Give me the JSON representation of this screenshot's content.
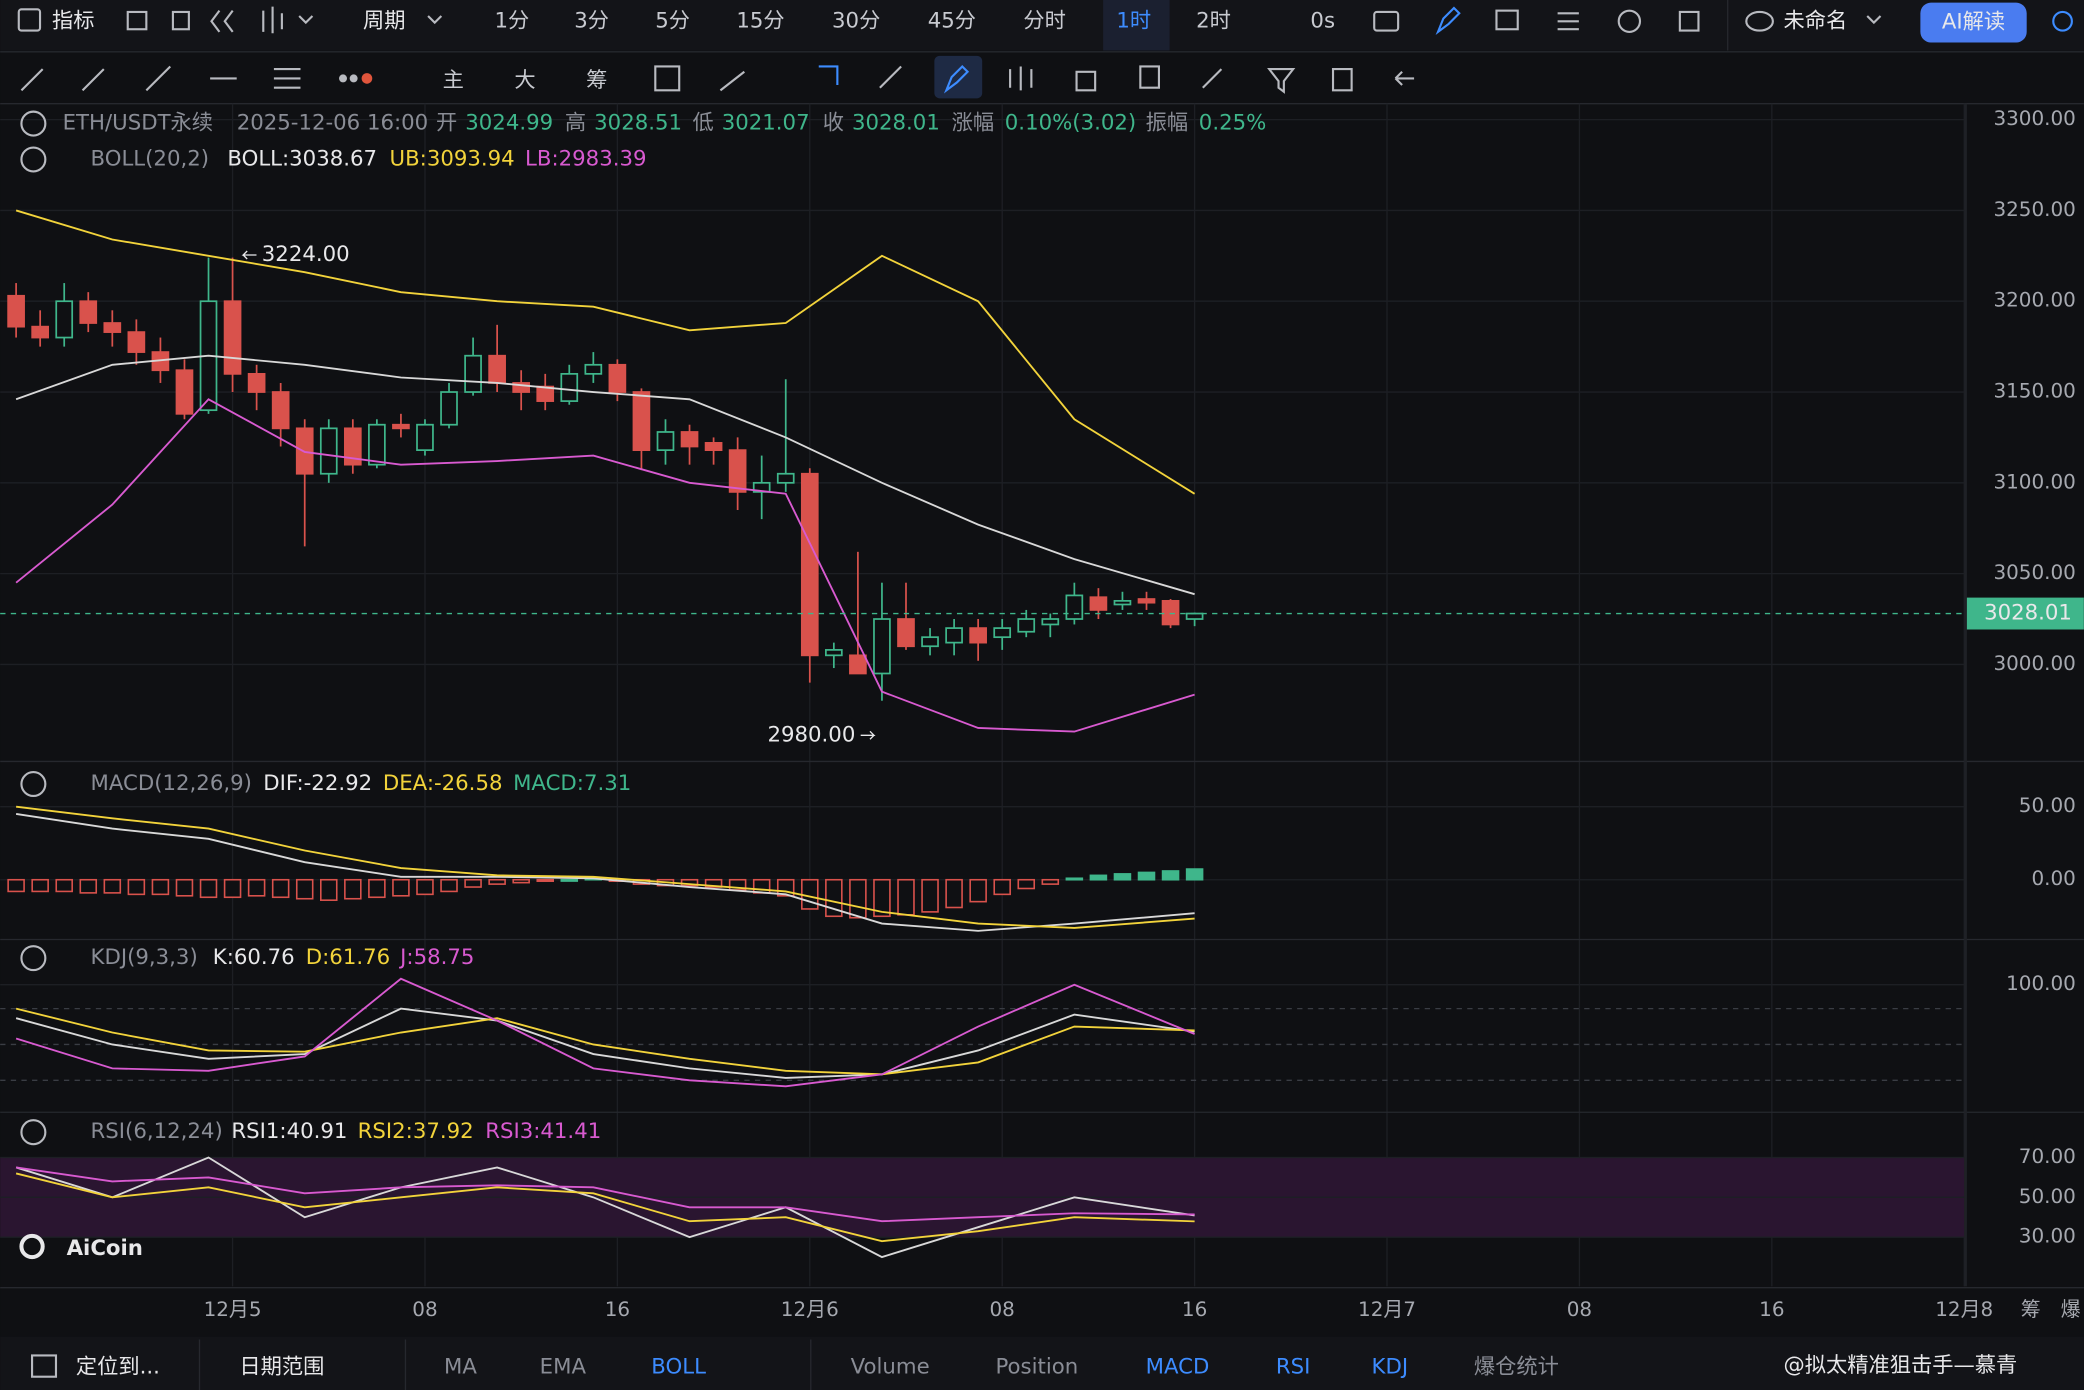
{
  "toolbar": {
    "items": [
      "指标",
      "周期",
      "1分",
      "3分",
      "5分",
      "15分",
      "30分",
      "45分",
      "分时",
      "1时",
      "2时",
      "0s"
    ],
    "layout_name": "未命名",
    "ai": "AI解读"
  },
  "drawing_tools": [
    "主",
    "大",
    "筹"
  ],
  "info": {
    "symbol": "ETH/USDT永续",
    "time": "2025-12-06 16:00",
    "open_label": "开",
    "open": "3024.99",
    "high_label": "高",
    "high": "3028.51",
    "low_label": "低",
    "low": "3021.07",
    "close_label": "收",
    "close": "3028.01",
    "change_label": "涨幅",
    "change": "0.10%(3.02)",
    "amp_label": "振幅",
    "amp": "0.25%"
  },
  "chart": {
    "ylim": [
      2947.3,
      3308.8
    ],
    "xlim": [
      -0.663,
      81
    ],
    "yticks": [
      {
        "value": 3300,
        "label": "3300.00"
      },
      {
        "value": 3250,
        "label": "3250.00"
      },
      {
        "value": 3200,
        "label": "3200.00"
      },
      {
        "value": 3150,
        "label": "3150.00"
      },
      {
        "value": 3100,
        "label": "3100.00"
      },
      {
        "value": 3050,
        "label": "3050.00"
      },
      {
        "value": 3000,
        "label": "3000.00"
      }
    ],
    "xticks": [
      {
        "value": 9,
        "label": "12月5"
      },
      {
        "value": 17,
        "label": "08"
      },
      {
        "value": 25,
        "label": "16"
      },
      {
        "value": 33,
        "label": "12月6"
      },
      {
        "value": 41,
        "label": "08"
      },
      {
        "value": 49,
        "label": "16"
      },
      {
        "value": 57,
        "label": "12月7"
      },
      {
        "value": 65,
        "label": "08"
      },
      {
        "value": 73,
        "label": "16"
      },
      {
        "value": 81,
        "label": "12月8"
      }
    ],
    "extra_axis_labels": [
      "筹",
      "爆"
    ],
    "last_price": {
      "value": 3028.01,
      "label": "3028.01"
    },
    "high_mark": {
      "value": 3224,
      "label": "3224.00",
      "index": 9
    },
    "low_mark": {
      "value": 2980,
      "label": "2980.00",
      "index": 36
    },
    "candles": [
      [
        3203,
        3210,
        3180,
        3186
      ],
      [
        3186,
        3195,
        3175,
        3180
      ],
      [
        3180,
        3210,
        3175,
        3200
      ],
      [
        3200,
        3205,
        3183,
        3188
      ],
      [
        3188,
        3195,
        3175,
        3183
      ],
      [
        3183,
        3190,
        3165,
        3172
      ],
      [
        3172,
        3180,
        3155,
        3162
      ],
      [
        3162,
        3168,
        3135,
        3138
      ],
      [
        3140,
        3224,
        3138,
        3200
      ],
      [
        3200,
        3224,
        3150,
        3160
      ],
      [
        3160,
        3165,
        3140,
        3150
      ],
      [
        3150,
        3155,
        3120,
        3130
      ],
      [
        3130,
        3135,
        3065,
        3105
      ],
      [
        3105,
        3135,
        3100,
        3130
      ],
      [
        3130,
        3135,
        3105,
        3110
      ],
      [
        3110,
        3135,
        3108,
        3132
      ],
      [
        3132,
        3138,
        3125,
        3130
      ],
      [
        3118,
        3135,
        3115,
        3132
      ],
      [
        3132,
        3155,
        3130,
        3150
      ],
      [
        3150,
        3180,
        3148,
        3170
      ],
      [
        3170,
        3187,
        3150,
        3155
      ],
      [
        3155,
        3162,
        3140,
        3150
      ],
      [
        3153,
        3160,
        3140,
        3145
      ],
      [
        3145,
        3165,
        3143,
        3160
      ],
      [
        3160,
        3172,
        3155,
        3165
      ],
      [
        3165,
        3168,
        3145,
        3150
      ],
      [
        3150,
        3152,
        3107,
        3118
      ],
      [
        3118,
        3135,
        3110,
        3128
      ],
      [
        3128,
        3132,
        3110,
        3120
      ],
      [
        3122,
        3125,
        3110,
        3118
      ],
      [
        3118,
        3125,
        3085,
        3095
      ],
      [
        3095,
        3115,
        3080,
        3100
      ],
      [
        3100,
        3157,
        3095,
        3105
      ],
      [
        3105,
        3108,
        2990,
        3005
      ],
      [
        3005,
        3012,
        2998,
        3008
      ],
      [
        3005,
        3062,
        2995,
        2995
      ],
      [
        2995,
        3045,
        2980,
        3025
      ],
      [
        3025,
        3045,
        3008,
        3010
      ],
      [
        3010,
        3020,
        3005,
        3015
      ],
      [
        3012,
        3025,
        3005,
        3020
      ],
      [
        3020,
        3025,
        3002,
        3012
      ],
      [
        3015,
        3025,
        3008,
        3020
      ],
      [
        3018,
        3030,
        3015,
        3025
      ],
      [
        3022,
        3028,
        3015,
        3025
      ],
      [
        3025,
        3045,
        3022,
        3038
      ],
      [
        3037,
        3042,
        3025,
        3030
      ],
      [
        3033,
        3040,
        3030,
        3035
      ],
      [
        3036,
        3040,
        3030,
        3034
      ],
      [
        3035,
        3036,
        3020,
        3022
      ],
      [
        3024.99,
        3028.51,
        3021.07,
        3028.01
      ]
    ],
    "boll": {
      "label": "BOLL(20,2)",
      "x": [
        0,
        4,
        8,
        12,
        16,
        20,
        24,
        28,
        32,
        36,
        40,
        44,
        49
      ],
      "mid": {
        "label": "BOLL:3038.67",
        "values": [
          3146,
          3165,
          3170,
          3165,
          3158,
          3155,
          3150,
          3146,
          3125,
          3100,
          3077,
          3058,
          3038.67
        ]
      },
      "upper": {
        "label": "UB:3093.94",
        "values": [
          3250,
          3234,
          3225,
          3216,
          3205,
          3200,
          3197,
          3184,
          3188,
          3225,
          3200,
          3135,
          3093.94
        ]
      },
      "lower": {
        "label": "LB:2983.39",
        "values": [
          3045,
          3088,
          3146,
          3117,
          3110,
          3112,
          3115,
          3100,
          3094,
          2985,
          2965,
          2963,
          2983.39
        ]
      }
    }
  },
  "macd": {
    "label": "MACD(12,26,9)",
    "ylim": [
      -40,
      76.4
    ],
    "yticks": [
      {
        "value": 50,
        "label": "50.00"
      },
      {
        "value": 0,
        "label": "0.00"
      }
    ],
    "x": [
      0,
      4,
      8,
      12,
      16,
      20,
      24,
      28,
      32,
      36,
      40,
      44,
      49
    ],
    "dif": {
      "label": "DIF:-22.92",
      "values": [
        45,
        35,
        28,
        12,
        2,
        2,
        1,
        -5,
        -10,
        -30,
        -35,
        -30,
        -22.92
      ]
    },
    "dea": {
      "label": "DEA:-26.58",
      "values": [
        50,
        42,
        35,
        20,
        8,
        3,
        2,
        -3,
        -8,
        -22,
        -30,
        -33,
        -26.58
      ]
    },
    "hist": {
      "label": "MACD:7.31",
      "values": [
        -8,
        -8,
        -8,
        -9,
        -9,
        -10,
        -10,
        -11,
        -12,
        -12,
        -11,
        -12,
        -13,
        -14,
        -13,
        -12,
        -11,
        -10,
        -8,
        -5,
        -3,
        -2,
        -1,
        0,
        1,
        -1,
        -3,
        -4,
        -4,
        -5,
        -7,
        -9,
        -11,
        -20,
        -25,
        -26,
        -25,
        -24,
        -22,
        -19,
        -15,
        -10,
        -6,
        -3,
        1,
        3,
        4,
        5,
        6,
        7.31
      ]
    }
  },
  "kdj": {
    "label": "KDJ(9,3,3)",
    "ylim": [
      -5.6,
      136.7
    ],
    "yticks": [
      {
        "value": 100,
        "label": "100.00"
      }
    ],
    "guides": [
      80,
      50,
      20
    ],
    "x": [
      0,
      4,
      8,
      12,
      16,
      20,
      24,
      28,
      32,
      36,
      40,
      44,
      49
    ],
    "k": {
      "label": "K:60.76",
      "values": [
        72,
        50,
        38,
        42,
        80,
        70,
        42,
        30,
        22,
        25,
        45,
        75,
        60.76
      ]
    },
    "d": {
      "label": "D:61.76",
      "values": [
        80,
        60,
        45,
        44,
        60,
        72,
        50,
        38,
        28,
        25,
        35,
        65,
        61.76
      ]
    },
    "j": {
      "label": "J:58.75",
      "values": [
        55,
        30,
        28,
        40,
        105,
        70,
        30,
        20,
        15,
        25,
        65,
        100,
        58.75
      ]
    }
  },
  "rsi": {
    "label": "RSI(6,12,24)",
    "ylim": [
      5.3,
      90.7
    ],
    "yticks": [
      {
        "value": 70,
        "label": "70.00"
      },
      {
        "value": 50,
        "label": "50.00"
      },
      {
        "value": 30,
        "label": "30.00"
      }
    ],
    "band": [
      30,
      70
    ],
    "x": [
      0,
      4,
      8,
      12,
      16,
      20,
      24,
      28,
      32,
      36,
      40,
      44,
      49
    ],
    "rsi1": {
      "label": "RSI1:40.91",
      "values": [
        65,
        50,
        70,
        40,
        55,
        65,
        50,
        30,
        45,
        20,
        35,
        50,
        40.91
      ]
    },
    "rsi2": {
      "label": "RSI2:37.92",
      "values": [
        62,
        50,
        55,
        45,
        50,
        55,
        52,
        38,
        40,
        28,
        33,
        40,
        37.92
      ]
    },
    "rsi3": {
      "label": "RSI3:41.41",
      "values": [
        65,
        58,
        60,
        52,
        55,
        56,
        55,
        45,
        45,
        38,
        40,
        42,
        41.41
      ]
    }
  },
  "watermark": "AiCoin",
  "bottom_bar": {
    "locate": "定位到...",
    "range": "日期范围",
    "indicators": [
      "MA",
      "EMA",
      "BOLL",
      "Volume",
      "Position",
      "MACD",
      "RSI",
      "KDJ",
      "爆仓统计"
    ],
    "user": "@拟太精准狙击手—慕青"
  }
}
